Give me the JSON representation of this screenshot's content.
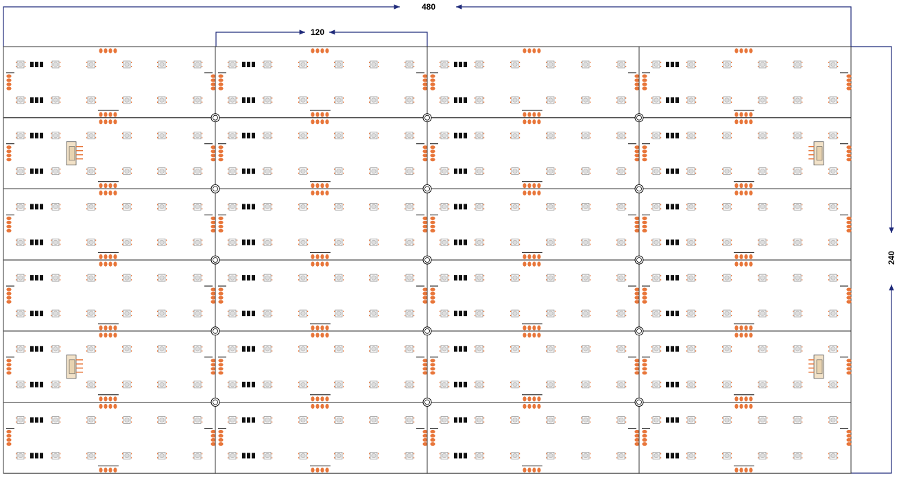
{
  "dimensions": {
    "total_width": 480,
    "module_width": 120,
    "total_height": 240
  }
}
